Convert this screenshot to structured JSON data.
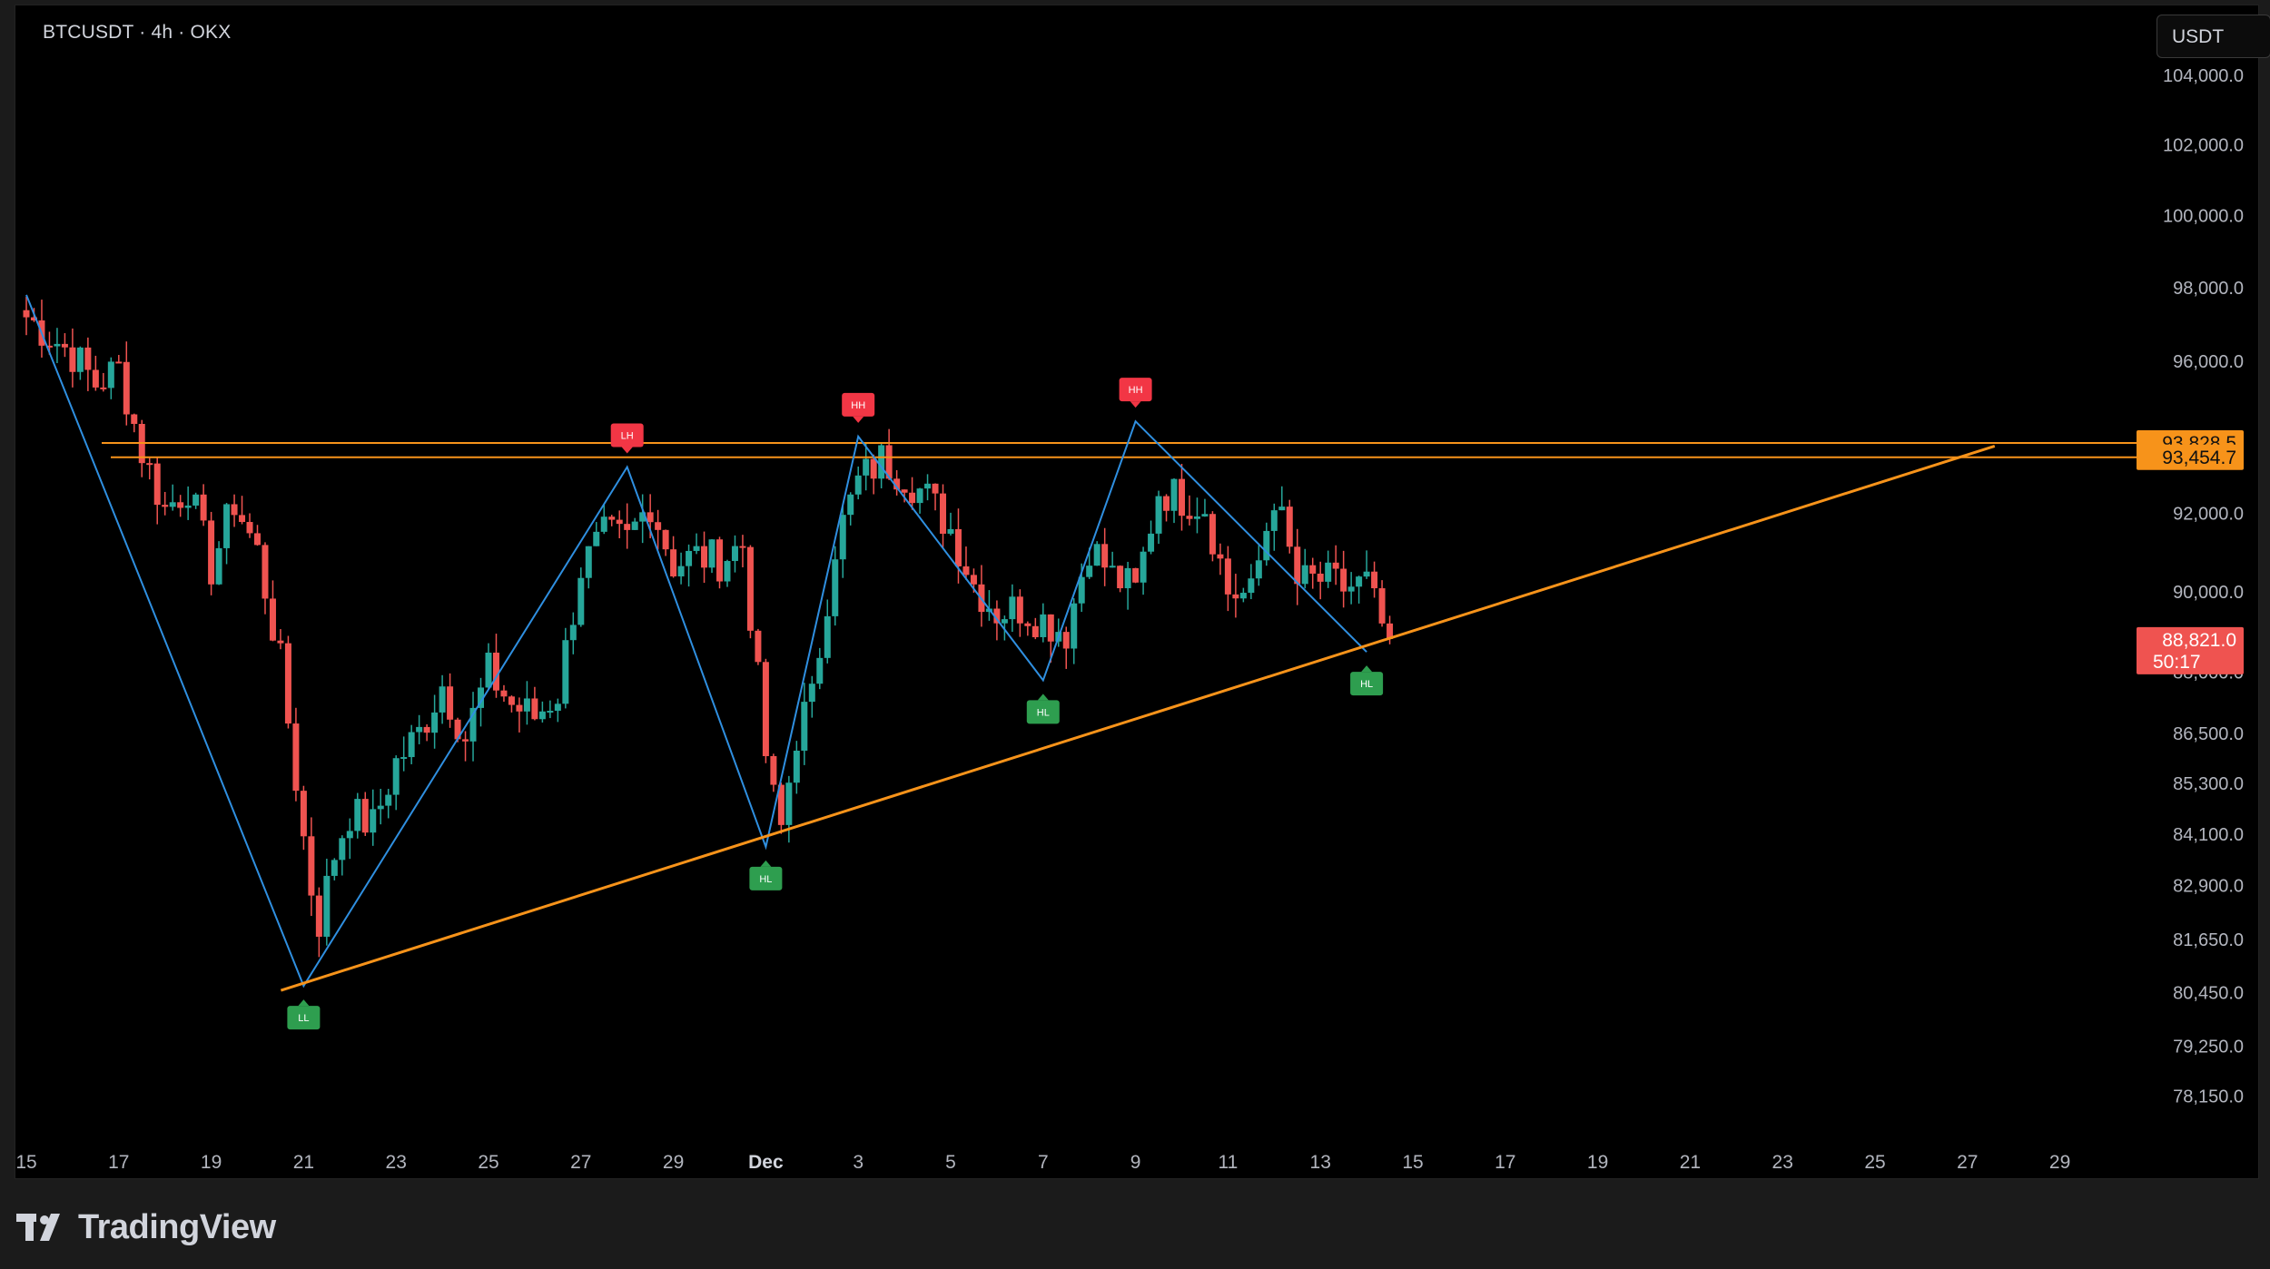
{
  "header": {
    "symbol": "BTCUSDT · 4h · OKX",
    "currency": "USDT"
  },
  "brand": {
    "logo_icon": "tradingview-logo-icon",
    "name": "TradingView"
  },
  "colors": {
    "background": "#000000",
    "up": "#26a69a",
    "down": "#ef5350",
    "zigzag": "#2f8fe0",
    "trendline": "#f7931a",
    "resistance": "#f7931a",
    "hh_tag": "#f23645",
    "hl_tag": "#2e9e4f"
  },
  "price_axis": {
    "labels": [
      "104,000.0",
      "102,000.0",
      "100,000.0",
      "98,000.0",
      "96,000.0",
      "92,000.0",
      "90,000.0",
      "86,500.0",
      "85,300.0",
      "84,100.0",
      "82,900.0",
      "81,650.0",
      "80,450.0",
      "79,250.0",
      "78,150.0"
    ],
    "current_price": "88,821.0",
    "countdown": "50:17",
    "resistance_1": "93,828.5",
    "resistance_2": "93,454.7",
    "hidden_label": "88,000.0"
  },
  "time_axis": {
    "labels": [
      "15",
      "17",
      "19",
      "21",
      "23",
      "25",
      "27",
      "29",
      "Dec",
      "3",
      "5",
      "7",
      "9",
      "11",
      "13",
      "15",
      "17",
      "19",
      "21",
      "23",
      "25",
      "27",
      "29"
    ]
  },
  "chart_data": {
    "type": "candlestick",
    "interval": "4h",
    "symbol": "BTCUSDT",
    "exchange": "OKX",
    "scale": "log",
    "grid": false,
    "zigzag": [
      {
        "date": "Nov 15",
        "price": 97800
      },
      {
        "date": "Nov 21",
        "price": 80600
      },
      {
        "date": "Nov 28",
        "price": 93200
      },
      {
        "date": "Dec 1",
        "price": 83800
      },
      {
        "date": "Dec 3",
        "price": 94000
      },
      {
        "date": "Dec 7",
        "price": 87800
      },
      {
        "date": "Dec 9",
        "price": 94400
      },
      {
        "date": "Dec 14",
        "price": 88500
      }
    ],
    "swing_labels": [
      {
        "text": "LL",
        "date": "Nov 21",
        "price": 80600,
        "kind": "low"
      },
      {
        "text": "LH",
        "date": "Nov 28",
        "price": 93200,
        "kind": "high"
      },
      {
        "text": "HL",
        "date": "Dec 1",
        "price": 83800,
        "kind": "low"
      },
      {
        "text": "HH",
        "date": "Dec 3",
        "price": 94000,
        "kind": "high"
      },
      {
        "text": "HL",
        "date": "Dec 7",
        "price": 87800,
        "kind": "low"
      },
      {
        "text": "HH",
        "date": "Dec 9",
        "price": 94400,
        "kind": "high"
      },
      {
        "text": "HL",
        "date": "Dec 14",
        "price": 88500,
        "kind": "low"
      }
    ],
    "horizontal_levels": [
      93828.5,
      93454.7
    ],
    "trendline": {
      "from": {
        "date": "Nov 21",
        "price": 80500
      },
      "to": {
        "date": "Dec 27",
        "price": 93700
      }
    },
    "last_price": 88821.0,
    "anchors": [
      [
        "Nov 15",
        97200
      ],
      [
        "Nov 16",
        96200
      ],
      [
        "Nov 16.5",
        95400
      ],
      [
        "Nov 17",
        95800
      ],
      [
        "Nov 17.5",
        93600
      ],
      [
        "Nov 18",
        92100
      ],
      [
        "Nov 18.5",
        92700
      ],
      [
        "Nov 19",
        90600
      ],
      [
        "Nov 19.5",
        92300
      ],
      [
        "Nov 20",
        91000
      ],
      [
        "Nov 20.5",
        88200
      ],
      [
        "Nov 21",
        84000
      ],
      [
        "Nov 21.3",
        81900
      ],
      [
        "Nov 21.7",
        83800
      ],
      [
        "Nov 22",
        84600
      ],
      [
        "Nov 22.5",
        84300
      ],
      [
        "Nov 23",
        85800
      ],
      [
        "Nov 23.5",
        86500
      ],
      [
        "Nov 24",
        87700
      ],
      [
        "Nov 24.5",
        86400
      ],
      [
        "Nov 25",
        88000
      ],
      [
        "Nov 25.5",
        87200
      ],
      [
        "Nov 26",
        86900
      ],
      [
        "Nov 26.5",
        87500
      ],
      [
        "Nov 27",
        90600
      ],
      [
        "Nov 27.5",
        91400
      ],
      [
        "Nov 28",
        91300
      ],
      [
        "Nov 28.5",
        92300
      ],
      [
        "Nov 29",
        90700
      ],
      [
        "Nov 29.5",
        90900
      ],
      [
        "Nov 30",
        90800
      ],
      [
        "Nov 30.5",
        91200
      ],
      [
        "Dec 1",
        86000
      ],
      [
        "Dec 1.3",
        84000
      ],
      [
        "Dec 1.7",
        86700
      ],
      [
        "Dec 2",
        87300
      ],
      [
        "Dec 2.5",
        91200
      ],
      [
        "Dec 3",
        92800
      ],
      [
        "Dec 3.5",
        93400
      ],
      [
        "Dec 4",
        93000
      ],
      [
        "Dec 4.5",
        92400
      ],
      [
        "Dec 5",
        91600
      ],
      [
        "Dec 5.5",
        90200
      ],
      [
        "Dec 6",
        89500
      ],
      [
        "Dec 6.5",
        89600
      ],
      [
        "Dec 7",
        89300
      ],
      [
        "Dec 7.5",
        89000
      ],
      [
        "Dec 8",
        91200
      ],
      [
        "Dec 8.5",
        90400
      ],
      [
        "Dec 9",
        90000
      ],
      [
        "Dec 9.5",
        92600
      ],
      [
        "Dec 10",
        92400
      ],
      [
        "Dec 10.5",
        92200
      ],
      [
        "Dec 11",
        90000
      ],
      [
        "Dec 11.5",
        89900
      ],
      [
        "Dec 12",
        92500
      ],
      [
        "Dec 12.5",
        90200
      ],
      [
        "Dec 13",
        90300
      ],
      [
        "Dec 13.5",
        90100
      ],
      [
        "Dec 14",
        90200
      ],
      [
        "Dec 14.3",
        89200
      ],
      [
        "Dec 14.6",
        88821
      ]
    ]
  }
}
